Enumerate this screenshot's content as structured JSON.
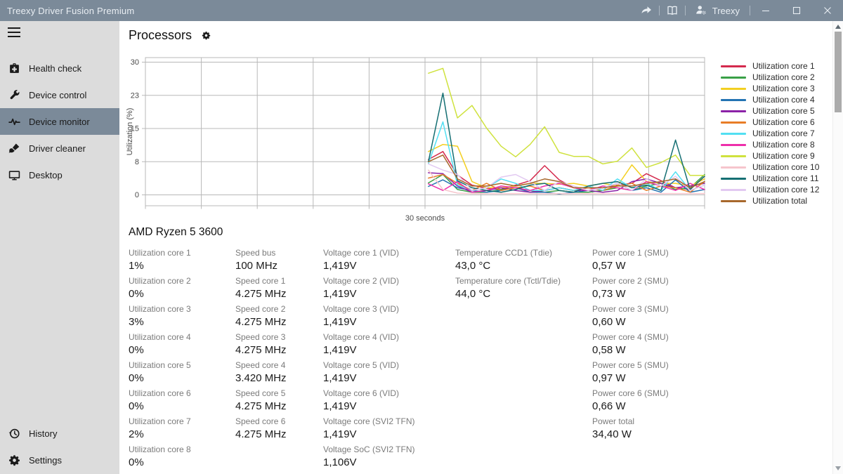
{
  "window": {
    "title": "Treexy Driver Fusion Premium",
    "account_label": "Treexy"
  },
  "titlebar": {
    "icons": [
      "share-icon",
      "book-icon",
      "user-gear-icon"
    ]
  },
  "sidebar": {
    "items": [
      {
        "id": "health-check",
        "label": "Health check",
        "icon": "health-check-icon",
        "selected": false
      },
      {
        "id": "device-control",
        "label": "Device control",
        "icon": "wrench-icon",
        "selected": false
      },
      {
        "id": "device-monitor",
        "label": "Device monitor",
        "icon": "pulse-icon",
        "selected": true
      },
      {
        "id": "driver-cleaner",
        "label": "Driver cleaner",
        "icon": "brush-icon",
        "selected": false
      },
      {
        "id": "desktop",
        "label": "Desktop",
        "icon": "monitor-icon",
        "selected": false
      }
    ],
    "bottom_items": [
      {
        "id": "history",
        "label": "History",
        "icon": "history-icon"
      },
      {
        "id": "settings",
        "label": "Settings",
        "icon": "gear-icon"
      }
    ]
  },
  "header": {
    "title": "Processors"
  },
  "colors": {
    "titlebar": "#7b8a99",
    "sidebar": "#dcdcdc",
    "selected_item": "#7b8a99",
    "gridline": "#b8b8b8"
  },
  "chart_data": {
    "type": "line",
    "title": "",
    "xlabel": "30 seconds",
    "ylabel": "Utilization (%)",
    "ylim": [
      0,
      30
    ],
    "y_ticks": [
      {
        "value": 0,
        "label": "0"
      },
      {
        "value": 7.5,
        "label": "8"
      },
      {
        "value": 15,
        "label": "15"
      },
      {
        "value": 22.5,
        "label": "23"
      },
      {
        "value": 30,
        "label": "30"
      }
    ],
    "x_window_seconds": 30,
    "grid": true,
    "legend_position": "right",
    "data_start_fraction": 0.506,
    "series": [
      {
        "name": "Utilization core 1",
        "color": "#d42a4d",
        "values": [
          8,
          9.8,
          4.5,
          2.2,
          1.5,
          1.2,
          2.2,
          3.2,
          6.6,
          3.4,
          1.6,
          1.6,
          1.6,
          2.2,
          2.6,
          4.8,
          3.2,
          1.6,
          1.2,
          4.2
        ]
      },
      {
        "name": "Utilization core 2",
        "color": "#3aa047",
        "values": [
          2.7,
          4.6,
          1.2,
          0.6,
          0.6,
          1.2,
          1.6,
          1,
          0.6,
          1,
          0.6,
          0.6,
          1,
          1.6,
          1,
          2,
          2.6,
          1.2,
          1.6,
          4.6
        ]
      },
      {
        "name": "Utilization core 3",
        "color": "#f3cf21",
        "values": [
          9.8,
          11.4,
          11,
          3,
          1.6,
          1.6,
          2,
          2.6,
          2.6,
          2.4,
          2.6,
          2,
          2.6,
          2,
          6.8,
          3,
          2.6,
          2.6,
          2,
          3.6
        ]
      },
      {
        "name": "Utilization core 4",
        "color": "#2373b3",
        "values": [
          1.9,
          3.4,
          1.6,
          1,
          0.6,
          1,
          1.6,
          0.6,
          0.6,
          0.2,
          0.6,
          1,
          1.6,
          2.6,
          1,
          1.6,
          0.6,
          3.4,
          0.6,
          1.2
        ]
      },
      {
        "name": "Utilization core 5",
        "color": "#8b22a7",
        "values": [
          5,
          4.8,
          2,
          0.6,
          1,
          1.6,
          1,
          0.6,
          1,
          1.6,
          1,
          1,
          0.6,
          1,
          3,
          3.6,
          2.6,
          1.6,
          2,
          2.6
        ]
      },
      {
        "name": "Utilization core 6",
        "color": "#e87d27",
        "values": [
          3.8,
          4.6,
          2.6,
          1,
          2.6,
          1,
          1.6,
          2,
          1,
          1.6,
          1,
          1.6,
          1,
          2,
          2.6,
          1,
          2,
          1.6,
          0.6,
          3
        ]
      },
      {
        "name": "Utilization core 7",
        "color": "#52dff2",
        "values": [
          7,
          16.5,
          2.2,
          1,
          1.6,
          3.6,
          2.6,
          1,
          1,
          1.6,
          1,
          2,
          1,
          3.6,
          1.6,
          2.6,
          1,
          5.2,
          1,
          2.2
        ]
      },
      {
        "name": "Utilization core 8",
        "color": "#ee2fab",
        "values": [
          2.5,
          1,
          3,
          0.6,
          1,
          2,
          1.6,
          1,
          2,
          2.6,
          1.6,
          1,
          2,
          1.6,
          1,
          3,
          2,
          1,
          2.6,
          1.2
        ]
      },
      {
        "name": "Utilization core 9",
        "color": "#cfe23e",
        "values": [
          27.5,
          28.6,
          17.4,
          20.2,
          15.1,
          11,
          8.6,
          11.4,
          15.4,
          9.6,
          8.7,
          8.7,
          7,
          7.6,
          10.6,
          6.2,
          7.3,
          9,
          4.4,
          4.4
        ]
      },
      {
        "name": "Utilization core 10",
        "color": "#f6c5cc",
        "values": [
          5.6,
          1.2,
          0.4,
          0.3,
          0.3,
          0.3,
          0.3,
          0.3,
          0.3,
          0.3,
          0.3,
          0.3,
          0.3,
          0.3,
          0.3,
          0.3,
          0.3,
          0.3,
          0.3,
          0.3
        ]
      },
      {
        "name": "Utilization core 11",
        "color": "#156f73",
        "values": [
          7.5,
          23,
          3.2,
          1.6,
          1,
          0.6,
          1.2,
          2.2,
          2.6,
          1,
          0.6,
          2,
          2.6,
          3,
          1.6,
          2.2,
          1,
          12.4,
          1.2,
          4.2
        ]
      },
      {
        "name": "Utilization core 12",
        "color": "#e2c9f1",
        "values": [
          7,
          5.6,
          4.6,
          1,
          1.6,
          4,
          4.6,
          3,
          1,
          3,
          2,
          1,
          1.6,
          2.6,
          1,
          3.6,
          2,
          4.2,
          1,
          2.2
        ]
      },
      {
        "name": "Utilization total",
        "color": "#a8682c",
        "values": [
          7.5,
          9,
          3.6,
          2,
          2,
          2.6,
          2,
          2.6,
          3.6,
          3,
          1.6,
          1.6,
          1.6,
          2,
          2,
          2.6,
          3,
          3.6,
          1.6,
          3
        ]
      }
    ]
  },
  "device": {
    "name": "AMD Ryzen 5 3600",
    "columns": [
      [
        {
          "label": "Utilization core 1",
          "value": "1%"
        },
        {
          "label": "Utilization core 2",
          "value": "0%"
        },
        {
          "label": "Utilization core 3",
          "value": "3%"
        },
        {
          "label": "Utilization core 4",
          "value": "0%"
        },
        {
          "label": "Utilization core 5",
          "value": "0%"
        },
        {
          "label": "Utilization core 6",
          "value": "0%"
        },
        {
          "label": "Utilization core 7",
          "value": "2%"
        },
        {
          "label": "Utilization core 8",
          "value": "0%"
        }
      ],
      [
        {
          "label": "Speed bus",
          "value": "100 MHz"
        },
        {
          "label": "Speed core 1",
          "value": "4.275 MHz"
        },
        {
          "label": "Speed core 2",
          "value": "4.275 MHz"
        },
        {
          "label": "Speed core 3",
          "value": "4.275 MHz"
        },
        {
          "label": "Speed core 4",
          "value": "3.420 MHz"
        },
        {
          "label": "Speed core 5",
          "value": "4.275 MHz"
        },
        {
          "label": "Speed core 6",
          "value": "4.275 MHz"
        }
      ],
      [
        {
          "label": "Voltage core 1 (VID)",
          "value": "1,419V"
        },
        {
          "label": "Voltage core 2 (VID)",
          "value": "1,419V"
        },
        {
          "label": "Voltage core 3 (VID)",
          "value": "1,419V"
        },
        {
          "label": "Voltage core 4 (VID)",
          "value": "1,419V"
        },
        {
          "label": "Voltage core 5 (VID)",
          "value": "1,419V"
        },
        {
          "label": "Voltage core 6 (VID)",
          "value": "1,419V"
        },
        {
          "label": "Voltage core (SVI2 TFN)",
          "value": "1,419V"
        },
        {
          "label": "Voltage SoC (SVI2 TFN)",
          "value": "1,106V"
        }
      ],
      [
        {
          "label": "Temperature CCD1 (Tdie)",
          "value": "43,0 °C"
        },
        {
          "label": "Temperature core (Tctl/Tdie)",
          "value": "44,0 °C"
        }
      ],
      [
        {
          "label": "Power core 1 (SMU)",
          "value": "0,57 W"
        },
        {
          "label": "Power core 2 (SMU)",
          "value": "0,73 W"
        },
        {
          "label": "Power core 3 (SMU)",
          "value": "0,60 W"
        },
        {
          "label": "Power core 4 (SMU)",
          "value": "0,58 W"
        },
        {
          "label": "Power core 5 (SMU)",
          "value": "0,97 W"
        },
        {
          "label": "Power core 6 (SMU)",
          "value": "0,66 W"
        },
        {
          "label": "Power total",
          "value": "34,40 W"
        }
      ]
    ]
  }
}
